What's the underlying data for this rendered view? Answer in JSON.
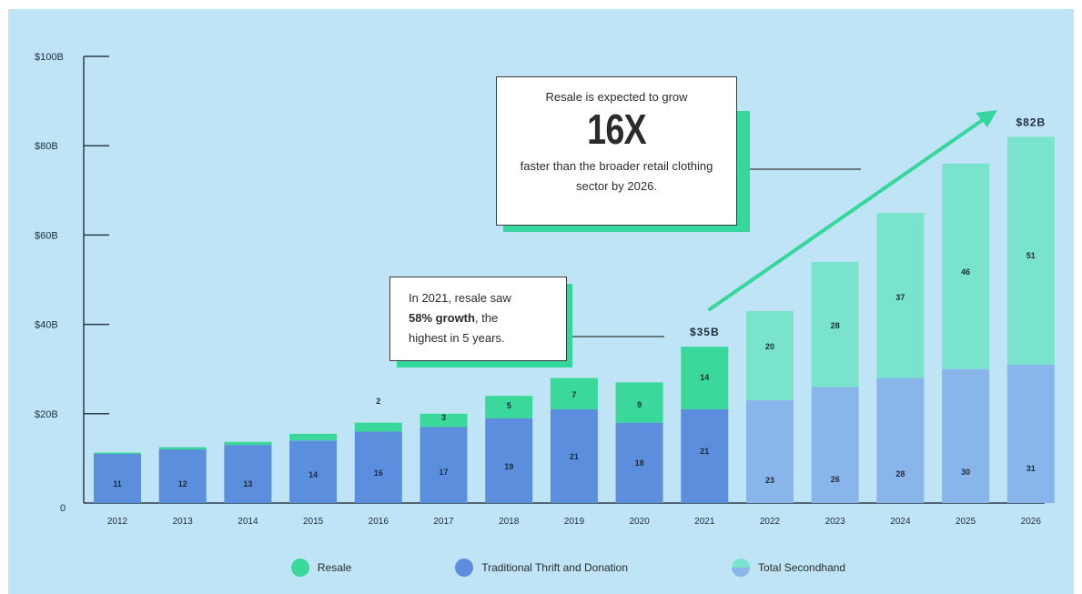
{
  "colors": {
    "background": "#bfe4f5",
    "resale": "#3ad89b",
    "traditional": "#5b8fdd",
    "resale_projected": "#79e3cb",
    "traditional_projected": "#88b6ea",
    "arrow": "#35d79c",
    "axis": "#2d3b4a"
  },
  "callouts": {
    "big_line1": "Resale is expected to grow",
    "big_number": "16X",
    "big_line2": "faster than the broader retail clothing sector by 2026.",
    "small_line1": "In 2021, resale saw",
    "small_bold": "58% growth",
    "small_rest1": ", the",
    "small_line3": "highest in 5 years."
  },
  "legend": {
    "resale": "Resale",
    "traditional": "Traditional Thrift and Donation",
    "total": "Total Secondhand"
  },
  "chart_data": {
    "type": "bar",
    "stacked": true,
    "categories": [
      "2012",
      "2013",
      "2014",
      "2015",
      "2016",
      "2017",
      "2018",
      "2019",
      "2020",
      "2021",
      "2022",
      "2023",
      "2024",
      "2025",
      "2026"
    ],
    "series": [
      {
        "name": "Traditional Thrift and Donation",
        "values": [
          11,
          12,
          13,
          14,
          16,
          17,
          19,
          21,
          18,
          21,
          23,
          26,
          28,
          30,
          31
        ],
        "labels": [
          "11",
          "12",
          "13",
          "14",
          "16",
          "17",
          "19",
          "21",
          "18",
          "21",
          "23",
          "26",
          "28",
          "30",
          "31"
        ]
      },
      {
        "name": "Resale",
        "values": [
          0.3,
          0.5,
          0.7,
          1.5,
          2,
          3,
          5,
          7,
          9,
          14,
          20,
          28,
          37,
          46,
          51
        ],
        "labels": [
          "",
          "",
          "",
          "",
          "2",
          "3",
          "5",
          "7",
          "9",
          "14",
          "20",
          "28",
          "37",
          "46",
          "51"
        ]
      }
    ],
    "projected_from_index": 10,
    "total_labels": [
      {
        "category": "2021",
        "text": "$35B"
      },
      {
        "category": "2026",
        "text": "$82B"
      }
    ],
    "yticks": [
      {
        "value": 0,
        "label": "0"
      },
      {
        "value": 20,
        "label": "$20B"
      },
      {
        "value": 40,
        "label": "$40B"
      },
      {
        "value": 60,
        "label": "$60B"
      },
      {
        "value": 80,
        "label": "$80B"
      },
      {
        "value": 100,
        "label": "$100B"
      }
    ],
    "ylim": [
      0,
      100
    ],
    "grid": false,
    "legend_position": "bottom"
  }
}
